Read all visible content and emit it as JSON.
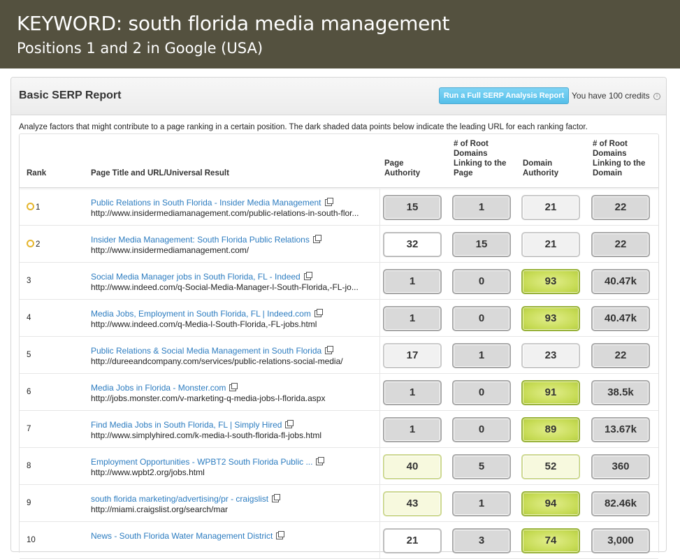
{
  "header": {
    "title": "KEYWORD: south florida media management",
    "subtitle": "Positions 1 and 2 in Google (USA)"
  },
  "panel": {
    "title": "Basic SERP Report",
    "run_button_label": "Run a Full SERP Analysis Report",
    "credits_text": "You have 100 credits",
    "info_glyph": "i",
    "description": "Analyze factors that might contribute to a page ranking in a certain position. The dark shaded data points below indicate the leading URL for each ranking factor."
  },
  "table": {
    "columns": {
      "rank": "Rank",
      "page": "Page Title and URL/Universal Result",
      "page_authority": [
        "Page",
        "Authority"
      ],
      "root_domains_page": [
        "# of Root",
        "Domains",
        "Linking to the",
        "Page"
      ],
      "domain_authority": [
        "Domain",
        "Authority"
      ],
      "root_domains_domain": [
        "# of Root",
        "Domains",
        "Linking to the",
        "Domain"
      ]
    },
    "rows": [
      {
        "rank": "1",
        "marked": true,
        "title": "Public Relations in South Florida - Insider Media Management",
        "url": "http://www.insidermediamanagement.com/public-relations-in-south-flor...",
        "pa": "15",
        "rdp": "1",
        "da": "21",
        "rdd": "22",
        "styles": [
          "gray",
          "gray",
          "light",
          "gray"
        ]
      },
      {
        "rank": "2",
        "marked": true,
        "title": "Insider Media Management: South Florida Public Relations",
        "url": "http://www.insidermediamanagement.com/",
        "pa": "32",
        "rdp": "15",
        "da": "21",
        "rdd": "22",
        "styles": [
          "white",
          "gray",
          "light",
          "gray"
        ]
      },
      {
        "rank": "3",
        "marked": false,
        "title": "Social Media Manager jobs in South Florida, FL - Indeed",
        "url": "http://www.indeed.com/q-Social-Media-Manager-l-South-Florida,-FL-jo...",
        "pa": "1",
        "rdp": "0",
        "da": "93",
        "rdd": "40.47k",
        "styles": [
          "gray",
          "gray",
          "green",
          "gray"
        ]
      },
      {
        "rank": "4",
        "marked": false,
        "title": "Media Jobs, Employment in South Florida, FL | Indeed.com",
        "url": "http://www.indeed.com/q-Media-l-South-Florida,-FL-jobs.html",
        "pa": "1",
        "rdp": "0",
        "da": "93",
        "rdd": "40.47k",
        "styles": [
          "gray",
          "gray",
          "green",
          "gray"
        ]
      },
      {
        "rank": "5",
        "marked": false,
        "title": "Public Relations & Social Media Management in South Florida",
        "url": "http://dureeandcompany.com/services/public-relations-social-media/",
        "pa": "17",
        "rdp": "1",
        "da": "23",
        "rdd": "22",
        "styles": [
          "light",
          "gray",
          "light",
          "gray"
        ]
      },
      {
        "rank": "6",
        "marked": false,
        "title": "Media Jobs in Florida - Monster.com",
        "url": "http://jobs.monster.com/v-marketing-q-media-jobs-l-florida.aspx",
        "pa": "1",
        "rdp": "0",
        "da": "91",
        "rdd": "38.5k",
        "styles": [
          "gray",
          "gray",
          "green",
          "gray"
        ]
      },
      {
        "rank": "7",
        "marked": false,
        "title": "Find Media Jobs in South Florida, FL | Simply Hired",
        "url": "http://www.simplyhired.com/k-media-l-south-florida-fl-jobs.html",
        "pa": "1",
        "rdp": "0",
        "da": "89",
        "rdd": "13.67k",
        "styles": [
          "gray",
          "gray",
          "green",
          "gray"
        ]
      },
      {
        "rank": "8",
        "marked": false,
        "title": "Employment Opportunities - WPBT2 South Florida Public ...",
        "url": "http://www.wpbt2.org/jobs.html",
        "pa": "40",
        "rdp": "5",
        "da": "52",
        "rdd": "360",
        "styles": [
          "pale",
          "gray",
          "pale",
          "gray"
        ]
      },
      {
        "rank": "9",
        "marked": false,
        "title": "south florida marketing/advertising/pr - craigslist",
        "url": "http://miami.craigslist.org/search/mar",
        "pa": "43",
        "rdp": "1",
        "da": "94",
        "rdd": "82.46k",
        "styles": [
          "pale",
          "gray",
          "green",
          "gray"
        ]
      },
      {
        "rank": "10",
        "marked": false,
        "title": "News - South Florida Water Management District",
        "url": "",
        "pa": "21",
        "rdp": "3",
        "da": "74",
        "rdd": "3,000",
        "styles": [
          "white",
          "gray",
          "green",
          "gray"
        ]
      }
    ]
  }
}
